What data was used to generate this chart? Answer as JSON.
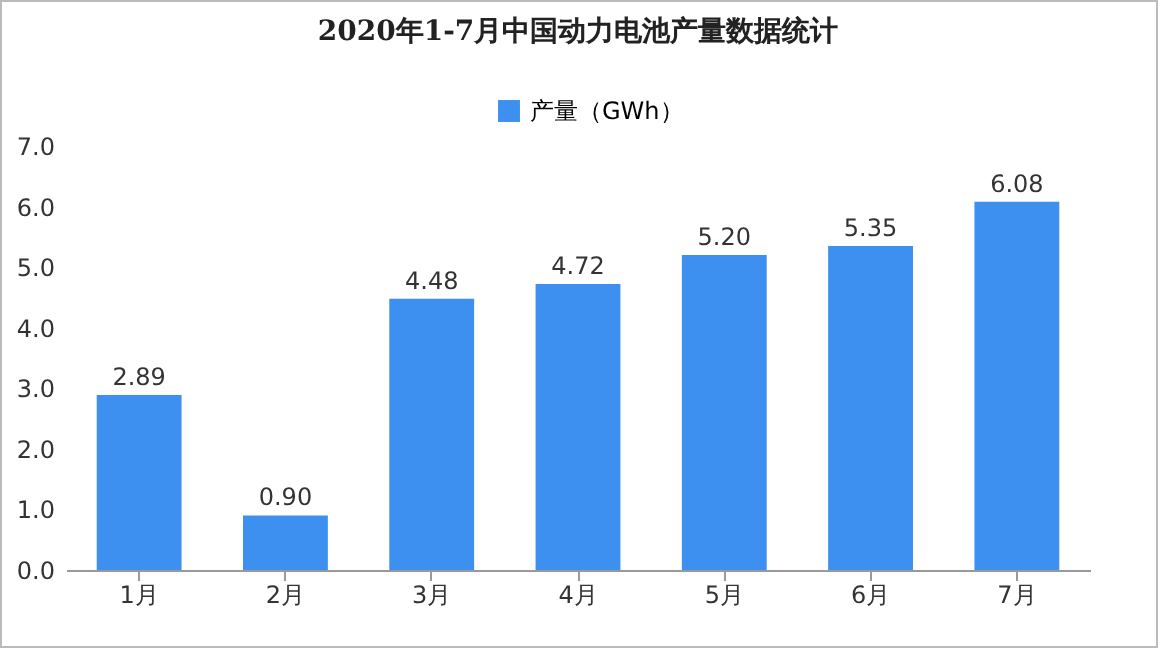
{
  "chart_data": {
    "type": "bar",
    "title": "2020年1-7月中国动力电池产量数据统计",
    "categories": [
      "1月",
      "2月",
      "3月",
      "4月",
      "5月",
      "6月",
      "7月"
    ],
    "series": [
      {
        "name": "产量（GWh）",
        "color": "#3d8ff0",
        "values": [
          2.89,
          0.9,
          4.48,
          4.72,
          5.2,
          5.35,
          6.08
        ],
        "value_labels": [
          "2.89",
          "0.90",
          "4.48",
          "4.72",
          "5.20",
          "5.35",
          "6.08"
        ]
      }
    ],
    "ylim": [
      0,
      7
    ],
    "yticks": [
      {
        "value": 0,
        "label": "0.0"
      },
      {
        "value": 1,
        "label": "1.0"
      },
      {
        "value": 2,
        "label": "2.0"
      },
      {
        "value": 3,
        "label": "3.0"
      },
      {
        "value": 4,
        "label": "4.0"
      },
      {
        "value": 5,
        "label": "5.0"
      },
      {
        "value": 6,
        "label": "6.0"
      },
      {
        "value": 7,
        "label": "7.0"
      }
    ],
    "grid": false,
    "legend": "top"
  }
}
